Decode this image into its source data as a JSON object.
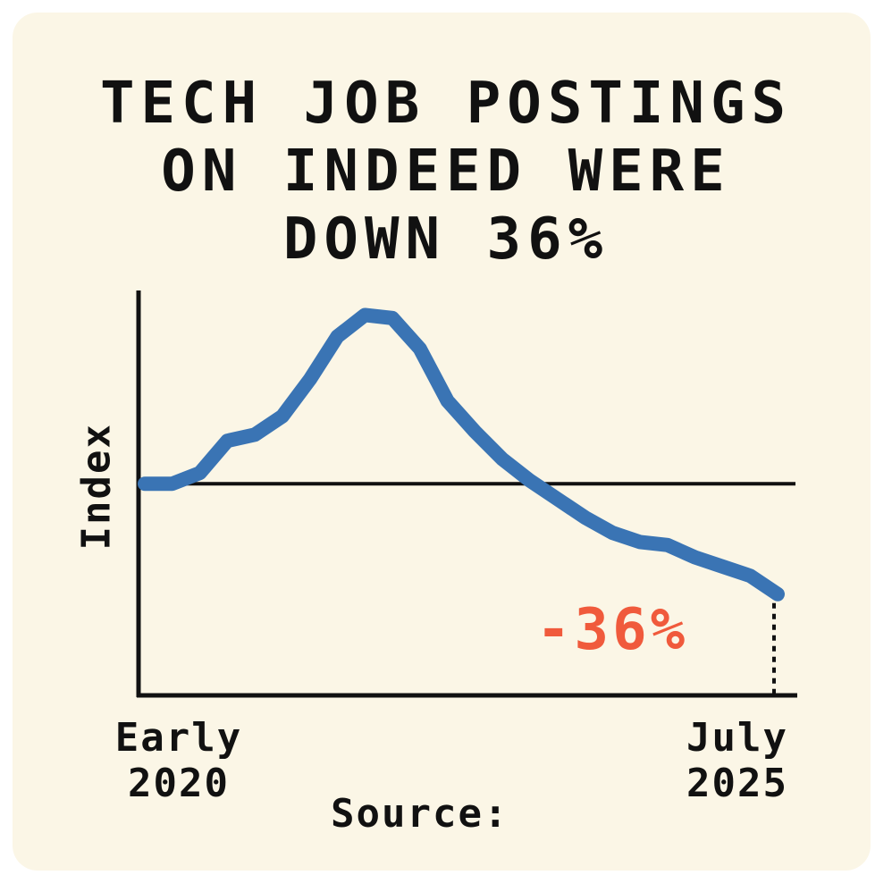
{
  "chart_data": {
    "type": "line",
    "title": "TECH JOB POSTINGS ON INDEED WERE DOWN 36%",
    "y_label": "Index",
    "annotation": "-36%",
    "source": "Source:",
    "categories": [
      "Early 2020",
      null,
      null,
      null,
      null,
      null,
      null,
      null,
      null,
      null,
      null,
      null,
      null,
      null,
      null,
      null,
      null,
      null,
      null,
      null,
      null,
      null,
      null,
      "July 2025"
    ],
    "series": [
      {
        "name": "Tech job postings",
        "color": "#3a74b4",
        "values": [
          100,
          100,
          103.5,
          114,
          116,
          122,
          134,
          148,
          155,
          154,
          144,
          127,
          117,
          108,
          101,
          95,
          89,
          84,
          81,
          80,
          76,
          73,
          70,
          64
        ]
      }
    ],
    "baseline": 100,
    "annotation_color": "#f05a3c",
    "ylim": [
      31,
      163
    ]
  }
}
